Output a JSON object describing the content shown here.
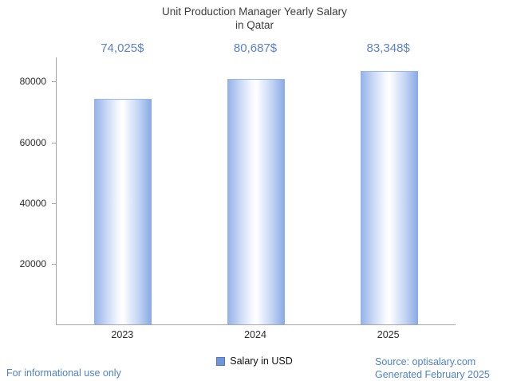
{
  "title": {
    "line1": "Unit Production Manager Yearly Salary",
    "line2": "in Qatar"
  },
  "chart_data": {
    "type": "bar",
    "title": "Unit Production Manager Yearly Salary in Qatar",
    "categories": [
      "2023",
      "2024",
      "2025"
    ],
    "values": [
      74025,
      80687,
      83348
    ],
    "value_labels": [
      "74,025$",
      "80,687$",
      "83,348$"
    ],
    "series_name": "Salary in USD",
    "xlabel": "",
    "ylabel": "",
    "ylim": [
      0,
      88000
    ],
    "yticks": [
      20000,
      40000,
      60000,
      80000
    ],
    "grid": false,
    "legend_position": "bottom-center"
  },
  "legend": {
    "label": "Salary in USD"
  },
  "footer": {
    "disclaimer": "For informational use only",
    "source": "Source: optisalary.com",
    "generated": "Generated February 2025"
  },
  "colors": {
    "value_label_text": "#5b80d0",
    "footer_text": "#4f81cd",
    "axis_line": "#a6a6a6",
    "bar_edge_blue": "#88a9e3",
    "legend_swatch": "#6f95d8",
    "title_text": "#3d3d3d"
  }
}
